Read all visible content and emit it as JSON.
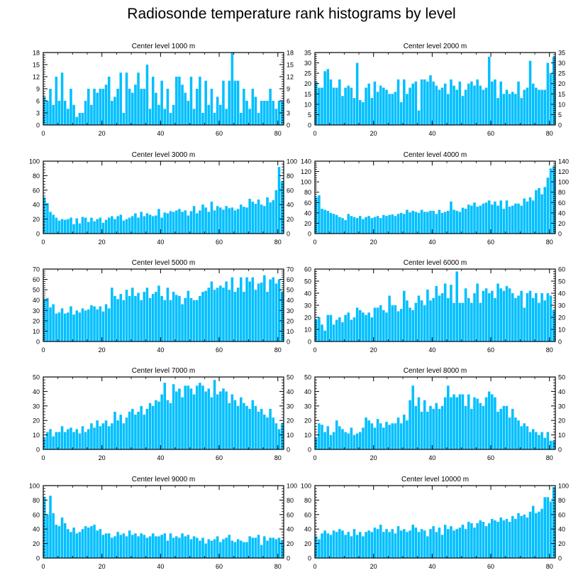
{
  "figure_title": "Radiosonde temperature rank histograms by level",
  "bar_color": "#00BFFF",
  "chart_data": [
    {
      "type": "bar",
      "title": "Center level 1000 m",
      "xlabel": "",
      "ylabel": "",
      "xlim": [
        0,
        82
      ],
      "ylim": [
        0,
        18
      ],
      "yticks": [
        0,
        3,
        6,
        9,
        12,
        15,
        18
      ],
      "xticks": [
        0,
        20,
        40,
        60,
        80
      ],
      "values": [
        7,
        6,
        9,
        5,
        12,
        6,
        13,
        6,
        4,
        9,
        5,
        2,
        3,
        3,
        6,
        9,
        5,
        9,
        8,
        9,
        9,
        10,
        12,
        6,
        7,
        9,
        13,
        3,
        13,
        9,
        8,
        10,
        13,
        9,
        9,
        15,
        4,
        12,
        8,
        5,
        11,
        4,
        9,
        3,
        5,
        12,
        12,
        10,
        8,
        6,
        12,
        4,
        9,
        12,
        3,
        11,
        5,
        9,
        3,
        7,
        5,
        11,
        4,
        11,
        18,
        11,
        11,
        3,
        9,
        6,
        4,
        9,
        7,
        3,
        6,
        6,
        6,
        9,
        6,
        4,
        6,
        6
      ]
    },
    {
      "type": "bar",
      "title": "Center level 2000 m",
      "xlabel": "",
      "ylabel": "",
      "xlim": [
        0,
        82
      ],
      "ylim": [
        0,
        35
      ],
      "yticks": [
        0,
        5,
        10,
        15,
        20,
        25,
        30,
        35
      ],
      "xticks": [
        0,
        20,
        40,
        60,
        80
      ],
      "values": [
        21,
        18,
        18,
        26,
        27,
        22,
        18,
        18,
        22,
        14,
        18,
        19,
        18,
        13,
        30,
        12,
        11,
        18,
        20,
        13,
        21,
        16,
        19,
        18,
        17,
        15,
        15,
        16,
        22,
        11,
        22,
        15,
        18,
        20,
        21,
        7,
        22,
        22,
        21,
        24,
        21,
        19,
        17,
        18,
        20,
        15,
        22,
        19,
        17,
        21,
        14,
        17,
        20,
        21,
        19,
        22,
        19,
        17,
        18,
        33,
        21,
        22,
        13,
        21,
        15,
        17,
        15,
        16,
        15,
        21,
        13,
        17,
        18,
        31,
        20,
        18,
        17,
        17,
        17,
        30,
        25,
        33
      ]
    },
    {
      "type": "bar",
      "title": "Center level 3000 m",
      "xlabel": "",
      "ylabel": "",
      "xlim": [
        0,
        82
      ],
      "ylim": [
        0,
        100
      ],
      "yticks": [
        0,
        20,
        40,
        60,
        80,
        100
      ],
      "xticks": [
        0,
        20,
        40,
        60,
        80
      ],
      "values": [
        50,
        42,
        30,
        26,
        22,
        18,
        20,
        19,
        20,
        22,
        13,
        21,
        14,
        23,
        22,
        16,
        22,
        17,
        20,
        22,
        15,
        19,
        22,
        24,
        20,
        24,
        26,
        18,
        20,
        22,
        24,
        28,
        22,
        30,
        24,
        28,
        26,
        24,
        25,
        34,
        22,
        29,
        28,
        31,
        30,
        32,
        34,
        30,
        32,
        25,
        31,
        38,
        28,
        32,
        40,
        36,
        30,
        44,
        32,
        38,
        36,
        33,
        38,
        35,
        36,
        32,
        34,
        40,
        37,
        36,
        48,
        44,
        41,
        47,
        40,
        38,
        50,
        43,
        46,
        60,
        92,
        72
      ]
    },
    {
      "type": "bar",
      "title": "Center level 4000 m",
      "xlabel": "",
      "ylabel": "",
      "xlim": [
        0,
        82
      ],
      "ylim": [
        0,
        140
      ],
      "yticks": [
        0,
        20,
        40,
        60,
        80,
        100,
        120,
        140
      ],
      "xticks": [
        0,
        20,
        40,
        60,
        80
      ],
      "values": [
        70,
        74,
        48,
        46,
        44,
        40,
        38,
        36,
        32,
        30,
        26,
        38,
        34,
        32,
        30,
        34,
        28,
        32,
        34,
        30,
        32,
        34,
        30,
        36,
        34,
        36,
        37,
        34,
        38,
        40,
        38,
        46,
        41,
        44,
        42,
        40,
        46,
        42,
        42,
        44,
        44,
        38,
        46,
        40,
        42,
        44,
        62,
        46,
        44,
        42,
        50,
        48,
        56,
        54,
        60,
        52,
        54,
        58,
        60,
        64,
        56,
        62,
        54,
        64,
        48,
        64,
        52,
        54,
        58,
        58,
        54,
        68,
        62,
        70,
        64,
        84,
        88,
        76,
        90,
        108,
        126,
        130
      ]
    },
    {
      "type": "bar",
      "title": "Center level 5000 m",
      "xlabel": "",
      "ylabel": "",
      "xlim": [
        0,
        82
      ],
      "ylim": [
        0,
        70
      ],
      "yticks": [
        0,
        10,
        20,
        30,
        40,
        50,
        60,
        70
      ],
      "xticks": [
        0,
        20,
        40,
        60,
        80
      ],
      "values": [
        41,
        42,
        33,
        36,
        27,
        28,
        32,
        27,
        28,
        34,
        26,
        30,
        28,
        32,
        30,
        31,
        35,
        34,
        31,
        34,
        29,
        36,
        32,
        52,
        44,
        41,
        46,
        40,
        50,
        44,
        52,
        44,
        47,
        40,
        48,
        52,
        42,
        46,
        48,
        54,
        44,
        40,
        52,
        40,
        48,
        45,
        44,
        36,
        42,
        49,
        42,
        40,
        40,
        44,
        48,
        49,
        52,
        58,
        50,
        52,
        54,
        52,
        58,
        50,
        62,
        48,
        52,
        62,
        48,
        62,
        58,
        62,
        50,
        56,
        57,
        64,
        48,
        60,
        62,
        56,
        60,
        48
      ]
    },
    {
      "type": "bar",
      "title": "Center level 6000 m",
      "xlabel": "",
      "ylabel": "",
      "xlim": [
        0,
        82
      ],
      "ylim": [
        0,
        60
      ],
      "yticks": [
        0,
        10,
        20,
        30,
        40,
        50,
        60
      ],
      "xticks": [
        0,
        20,
        40,
        60,
        80
      ],
      "values": [
        18,
        20,
        14,
        9,
        22,
        22,
        14,
        18,
        20,
        16,
        22,
        24,
        18,
        20,
        28,
        26,
        24,
        22,
        24,
        20,
        28,
        28,
        30,
        26,
        24,
        38,
        30,
        30,
        25,
        27,
        42,
        34,
        28,
        26,
        32,
        38,
        34,
        30,
        43,
        34,
        36,
        46,
        38,
        40,
        48,
        36,
        47,
        32,
        58,
        32,
        32,
        44,
        36,
        32,
        40,
        48,
        32,
        42,
        44,
        40,
        42,
        36,
        48,
        44,
        42,
        46,
        44,
        40,
        36,
        38,
        42,
        28,
        40,
        42,
        36,
        40,
        32,
        40,
        34,
        40,
        38,
        26
      ]
    },
    {
      "type": "bar",
      "title": "Center level 7000 m",
      "xlabel": "",
      "ylabel": "",
      "xlim": [
        0,
        82
      ],
      "ylim": [
        0,
        50
      ],
      "yticks": [
        0,
        10,
        20,
        30,
        40,
        50
      ],
      "xticks": [
        0,
        20,
        40,
        60,
        80
      ],
      "values": [
        8,
        12,
        14,
        9,
        12,
        12,
        16,
        12,
        14,
        15,
        12,
        14,
        11,
        16,
        12,
        14,
        18,
        15,
        20,
        16,
        18,
        20,
        16,
        18,
        26,
        20,
        24,
        18,
        22,
        26,
        28,
        24,
        26,
        30,
        24,
        28,
        32,
        30,
        34,
        33,
        38,
        46,
        34,
        32,
        45,
        40,
        42,
        36,
        44,
        44,
        42,
        38,
        44,
        46,
        44,
        40,
        42,
        36,
        48,
        38,
        40,
        42,
        40,
        32,
        38,
        34,
        30,
        36,
        32,
        30,
        28,
        34,
        30,
        26,
        28,
        24,
        22,
        28,
        22,
        18,
        14,
        18
      ]
    },
    {
      "type": "bar",
      "title": "Center level 8000 m",
      "xlabel": "",
      "ylabel": "",
      "xlim": [
        0,
        82
      ],
      "ylim": [
        0,
        50
      ],
      "yticks": [
        0,
        10,
        20,
        30,
        40,
        50
      ],
      "xticks": [
        0,
        20,
        40,
        60,
        80
      ],
      "values": [
        8,
        18,
        17,
        12,
        16,
        10,
        12,
        20,
        16,
        14,
        12,
        11,
        15,
        10,
        11,
        12,
        15,
        22,
        20,
        18,
        15,
        21,
        18,
        15,
        19,
        17,
        18,
        18,
        22,
        18,
        24,
        20,
        34,
        44,
        30,
        36,
        26,
        34,
        26,
        30,
        28,
        32,
        28,
        30,
        36,
        44,
        36,
        38,
        36,
        38,
        38,
        30,
        38,
        28,
        36,
        35,
        32,
        30,
        36,
        40,
        38,
        36,
        26,
        28,
        30,
        30,
        22,
        28,
        22,
        20,
        16,
        18,
        16,
        12,
        14,
        12,
        10,
        12,
        8,
        12,
        6,
        6
      ]
    },
    {
      "type": "bar",
      "title": "Center level 9000 m",
      "xlabel": "",
      "ylabel": "",
      "xlim": [
        0,
        82
      ],
      "ylim": [
        0,
        100
      ],
      "yticks": [
        0,
        20,
        40,
        60,
        80,
        100
      ],
      "xticks": [
        0,
        20,
        40,
        60,
        80
      ],
      "values": [
        84,
        60,
        86,
        62,
        46,
        44,
        56,
        48,
        40,
        36,
        42,
        34,
        36,
        40,
        44,
        42,
        44,
        46,
        38,
        40,
        32,
        34,
        34,
        28,
        30,
        36,
        32,
        34,
        30,
        38,
        32,
        34,
        30,
        34,
        32,
        28,
        30,
        34,
        30,
        30,
        32,
        34,
        24,
        34,
        28,
        30,
        28,
        34,
        30,
        32,
        26,
        30,
        28,
        24,
        28,
        20,
        26,
        24,
        26,
        30,
        22,
        26,
        28,
        32,
        24,
        22,
        26,
        24,
        22,
        22,
        30,
        28,
        28,
        32,
        18,
        30,
        24,
        28,
        28,
        26,
        28,
        24
      ]
    },
    {
      "type": "bar",
      "title": "Center level 10000 m",
      "xlabel": "",
      "ylabel": "",
      "xlim": [
        0,
        82
      ],
      "ylim": [
        0,
        100
      ],
      "yticks": [
        0,
        20,
        40,
        60,
        80,
        100
      ],
      "xticks": [
        0,
        20,
        40,
        60,
        80
      ],
      "values": [
        30,
        26,
        34,
        38,
        34,
        32,
        38,
        36,
        40,
        38,
        32,
        36,
        30,
        40,
        32,
        36,
        30,
        36,
        38,
        36,
        42,
        40,
        46,
        36,
        40,
        36,
        40,
        34,
        44,
        38,
        40,
        36,
        38,
        46,
        42,
        36,
        40,
        38,
        30,
        40,
        44,
        36,
        42,
        32,
        46,
        40,
        44,
        38,
        40,
        42,
        46,
        40,
        50,
        48,
        42,
        48,
        52,
        50,
        44,
        48,
        54,
        52,
        50,
        56,
        52,
        54,
        50,
        58,
        54,
        62,
        58,
        60,
        56,
        64,
        72,
        62,
        64,
        68,
        84,
        84,
        78,
        98
      ]
    }
  ]
}
